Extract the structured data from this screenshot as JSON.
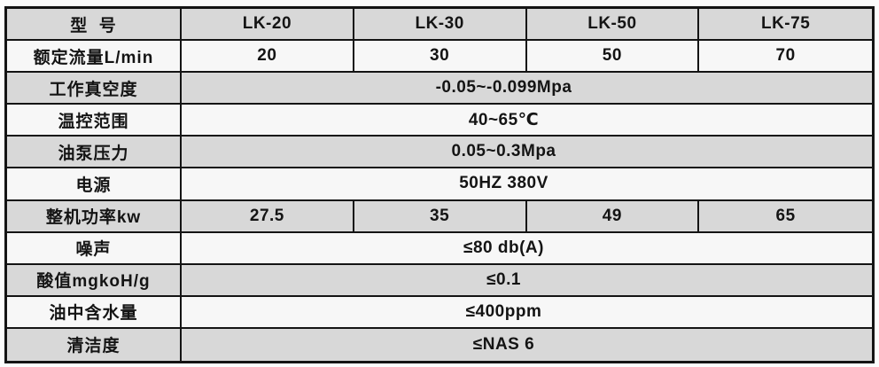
{
  "colors": {
    "row_shaded": "#d8d8d8",
    "row_plain": "#f7f7f7",
    "border": "#141414",
    "page_background": "#fcfcfc"
  },
  "table": {
    "rows": [
      {
        "label": "型  号",
        "type": "split",
        "values": [
          "LK-20",
          "LK-30",
          "LK-50",
          "LK-75"
        ],
        "shaded": true
      },
      {
        "label": "额定流量L/min",
        "type": "split",
        "values": [
          "20",
          "30",
          "50",
          "70"
        ],
        "shaded": false
      },
      {
        "label": "工作真空度",
        "type": "merged",
        "value": "-0.05~-0.099Mpa",
        "shaded": true
      },
      {
        "label": "温控范围",
        "type": "merged",
        "value": "40~65℃",
        "shaded": false
      },
      {
        "label": "油泵压力",
        "type": "merged",
        "value": "0.05~0.3Mpa",
        "shaded": true
      },
      {
        "label": "电源",
        "type": "merged",
        "value": "50HZ 380V",
        "shaded": false
      },
      {
        "label": "整机功率kw",
        "type": "split",
        "values": [
          "27.5",
          "35",
          "49",
          "65"
        ],
        "shaded": true
      },
      {
        "label": "噪声",
        "type": "merged",
        "value": "≤80 db(A)",
        "shaded": false
      },
      {
        "label": "酸值mgkoH/g",
        "type": "merged",
        "value": "≤0.1",
        "shaded": true
      },
      {
        "label": "油中含水量",
        "type": "merged",
        "value": "≤400ppm",
        "shaded": false
      },
      {
        "label": "清洁度",
        "type": "merged",
        "value": "≤NAS 6",
        "shaded": true
      }
    ]
  }
}
